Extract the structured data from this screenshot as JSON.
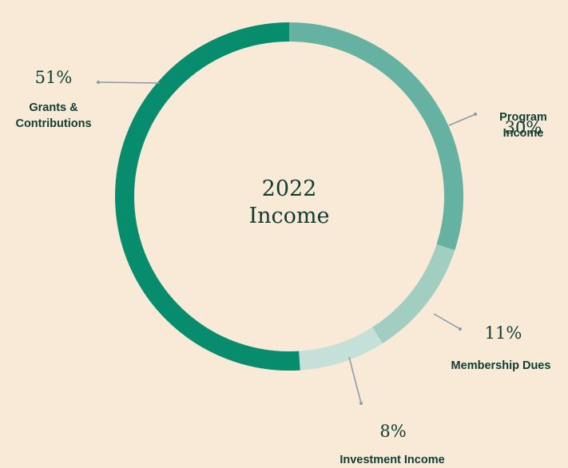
{
  "chart_data": {
    "type": "pie",
    "title": "2022 Income",
    "categories": [
      "Program Income",
      "Membership Dues",
      "Investment Income",
      "Grants & Contributions"
    ],
    "values": [
      30,
      11,
      8,
      51
    ],
    "value_labels": [
      "30%",
      "11%",
      "8%",
      "51%"
    ],
    "colors": [
      "#66b2a2",
      "#a2cec2",
      "#c5e0d9",
      "#078c6d"
    ],
    "donut": true
  }
}
